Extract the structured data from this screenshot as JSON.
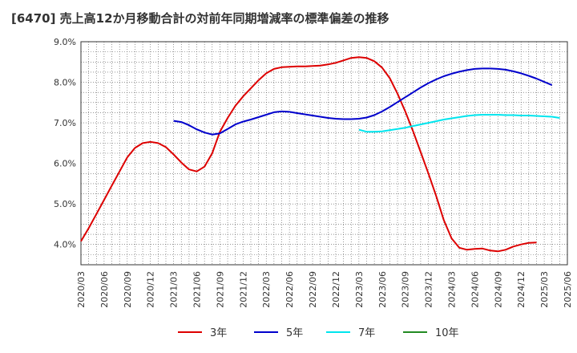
{
  "title": "[6470]  売上高12か月移動合計の対前年同期増減率の標準偏差の推移",
  "chart_data": {
    "type": "line",
    "title": "[6470]  売上高12か月移動合計の対前年同期増減率の標準偏差の推移",
    "xlabel": "",
    "ylabel": "",
    "ylim": [
      3.5,
      9.0
    ],
    "grid": true,
    "legend_position": "bottom",
    "x_ticks": [
      "2020/03",
      "2020/06",
      "2020/09",
      "2020/12",
      "2021/03",
      "2021/06",
      "2021/09",
      "2021/12",
      "2022/03",
      "2022/06",
      "2022/09",
      "2022/12",
      "2023/03",
      "2023/06",
      "2023/09",
      "2023/12",
      "2024/03",
      "2024/06",
      "2024/09",
      "2024/12",
      "2025/03",
      "2025/06"
    ],
    "y_ticks": [
      {
        "value": 4.0,
        "label": "4.0%"
      },
      {
        "value": 5.0,
        "label": "5.0%"
      },
      {
        "value": 6.0,
        "label": "6.0%"
      },
      {
        "value": 7.0,
        "label": "7.0%"
      },
      {
        "value": 8.0,
        "label": "8.0%"
      },
      {
        "value": 9.0,
        "label": "9.0%"
      }
    ],
    "x_start": "2020/03",
    "series": [
      {
        "name": "3年",
        "color": "#dd0000",
        "start": "2020/03",
        "values": [
          4.08,
          4.4,
          4.75,
          5.1,
          5.45,
          5.8,
          6.15,
          6.38,
          6.5,
          6.53,
          6.5,
          6.4,
          6.22,
          6.02,
          5.85,
          5.8,
          5.92,
          6.25,
          6.78,
          7.12,
          7.42,
          7.65,
          7.85,
          8.05,
          8.22,
          8.33,
          8.37,
          8.38,
          8.39,
          8.39,
          8.4,
          8.41,
          8.44,
          8.48,
          8.54,
          8.6,
          8.62,
          8.6,
          8.52,
          8.36,
          8.1,
          7.72,
          7.28,
          6.8,
          6.28,
          5.75,
          5.2,
          4.6,
          4.15,
          3.92,
          3.87,
          3.89,
          3.9,
          3.85,
          3.83,
          3.87,
          3.95,
          4.0,
          4.04,
          4.05
        ]
      },
      {
        "name": "5年",
        "color": "#0000cc",
        "start": "2021/03",
        "values": [
          7.05,
          7.02,
          6.94,
          6.84,
          6.76,
          6.71,
          6.74,
          6.85,
          6.96,
          7.03,
          7.08,
          7.14,
          7.2,
          7.26,
          7.28,
          7.27,
          7.24,
          7.21,
          7.18,
          7.15,
          7.12,
          7.1,
          7.09,
          7.09,
          7.1,
          7.13,
          7.19,
          7.28,
          7.39,
          7.51,
          7.63,
          7.75,
          7.87,
          7.98,
          8.07,
          8.15,
          8.21,
          8.26,
          8.3,
          8.33,
          8.34,
          8.34,
          8.33,
          8.31,
          8.27,
          8.22,
          8.16,
          8.09,
          8.01,
          7.93
        ]
      },
      {
        "name": "7年",
        "color": "#00e5ee",
        "start": "2023/03",
        "values": [
          6.83,
          6.78,
          6.78,
          6.79,
          6.82,
          6.85,
          6.88,
          6.92,
          6.96,
          7.0,
          7.04,
          7.08,
          7.11,
          7.14,
          7.17,
          7.19,
          7.2,
          7.2,
          7.2,
          7.19,
          7.19,
          7.18,
          7.18,
          7.17,
          7.16,
          7.15,
          7.12
        ]
      },
      {
        "name": "10年",
        "color": "#228b22",
        "start": "",
        "values": []
      }
    ]
  }
}
